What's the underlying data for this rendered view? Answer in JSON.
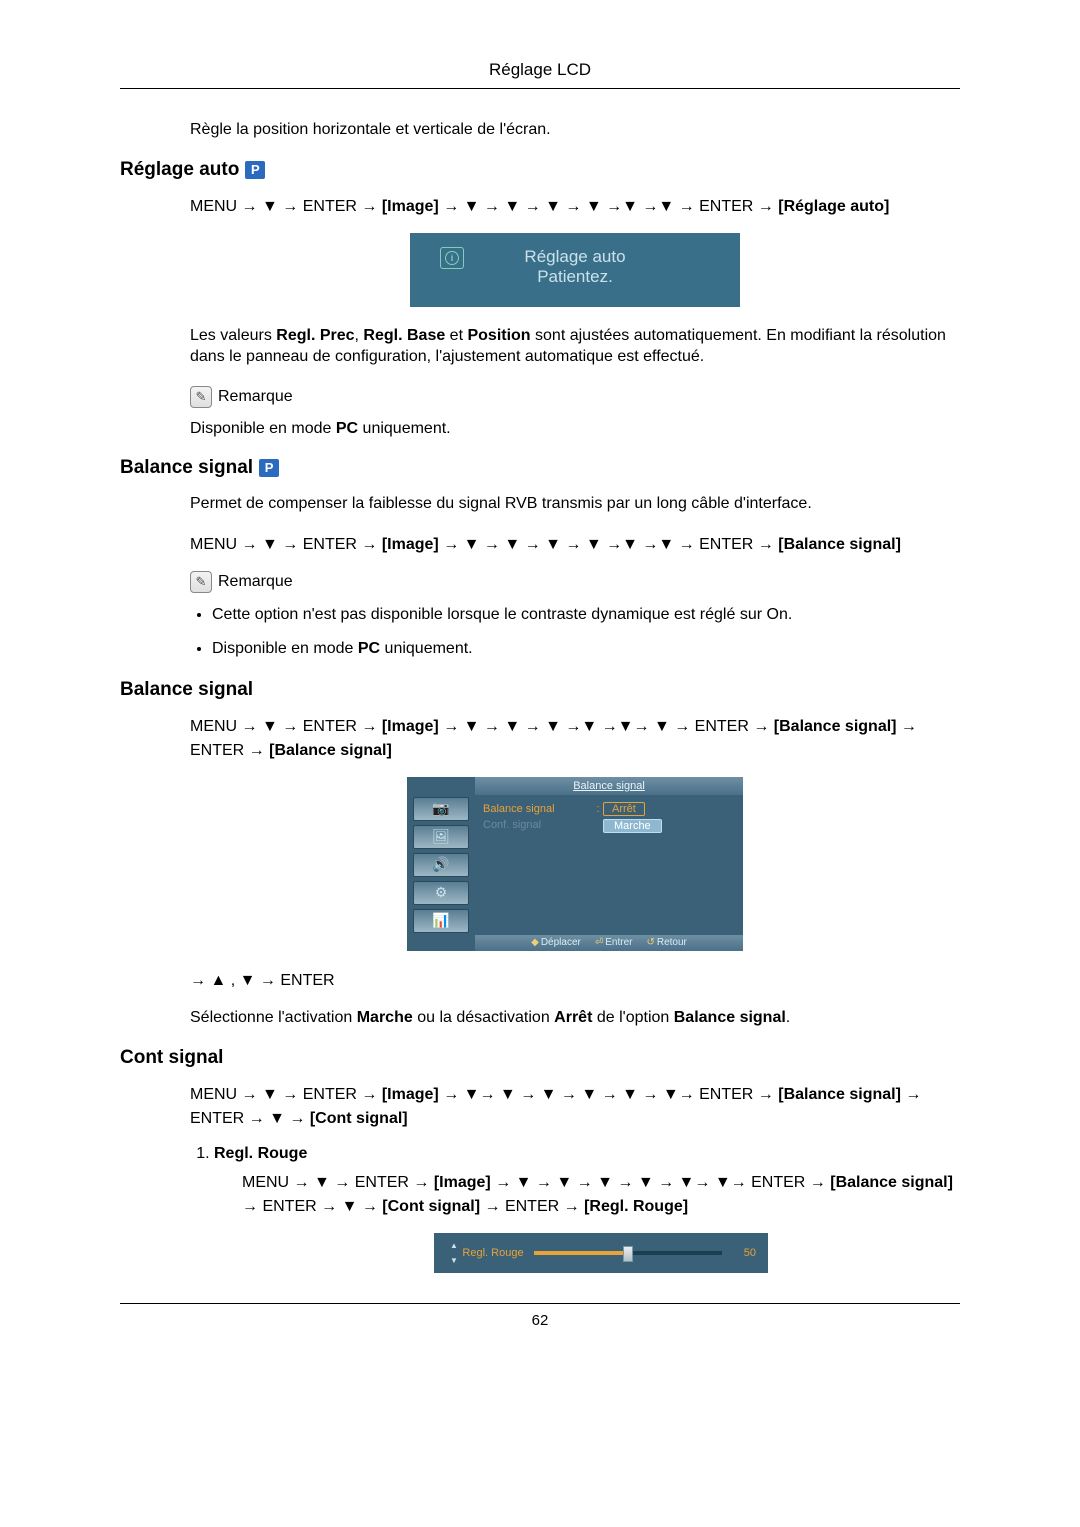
{
  "header": {
    "title": "Réglage LCD"
  },
  "page_number": "62",
  "intro_para": "Règle la position horizontale et verticale de l'écran.",
  "sec_auto": {
    "title": "Réglage auto",
    "badge": "P",
    "path_prefix": "MENU → ▼ → ENTER → ",
    "path_img": "[Image]",
    "path_mid": " → ▼ → ▼ → ▼ → ▼ →▼ →▼ → ENTER → ",
    "path_end": "[Réglage auto]",
    "box_line1": "Réglage auto",
    "box_line2": "Patientez.",
    "desc_a": "Les valeurs ",
    "desc_rp": "Regl. Prec",
    "desc_b": ", ",
    "desc_rb": "Regl. Base",
    "desc_c": " et ",
    "desc_pos": "Position",
    "desc_d": " sont ajustées automatiquement. En modifiant la résolution dans le panneau de configuration, l'ajustement automatique est effectué.",
    "remarque": "Remarque",
    "note_a": "Disponible en mode ",
    "note_pc": "PC",
    "note_b": " uniquement."
  },
  "sec_balsig1": {
    "title": "Balance signal",
    "badge": "P",
    "desc": "Permet de compenser la faiblesse du signal RVB transmis par un long câble d'interface.",
    "path_prefix": "MENU → ▼ → ENTER → ",
    "path_img": "[Image]",
    "path_mid": " → ▼ → ▼ → ▼ → ▼ →▼ →▼ → ENTER → ",
    "path_end": "[Balance signal]",
    "remarque": "Remarque",
    "bullet1": "Cette option n'est pas disponible lorsque le contraste dynamique est réglé sur On.",
    "bullet2_a": "Disponible en mode ",
    "bullet2_pc": "PC",
    "bullet2_b": " uniquement."
  },
  "sec_balsig2": {
    "title": "Balance signal",
    "path_prefix": "MENU → ▼ → ENTER → ",
    "path_img": "[Image]",
    "path_mid": " → ▼ → ▼ → ▼ →▼ →▼→ ▼ → ENTER → ",
    "path_bs": "[Balance signal]",
    "path_after": " → ENTER → ",
    "path_end": "[Balance signal]",
    "osd": {
      "tab_title": "Balance signal",
      "row1_label": "Balance signal",
      "row1_val": "Arrêt",
      "row2_label": "Conf. signal",
      "row2_sel": "Marche",
      "foot_move": "Déplacer",
      "foot_enter": "Entrer",
      "foot_return": "Retour"
    },
    "nav_after": "→ ▲ , ▼ → ENTER",
    "desc_a": "Sélectionne l'activation ",
    "desc_on": "Marche",
    "desc_b": " ou la désactivation ",
    "desc_off": "Arrêt",
    "desc_c": " de l'option ",
    "desc_bs": "Balance signal",
    "desc_d": "."
  },
  "sec_cont": {
    "title": "Cont signal",
    "path_prefix": "MENU → ▼ → ENTER → ",
    "path_img": "[Image]",
    "path_mid": " → ▼→ ▼ → ▼ → ▼ → ▼ → ▼→ ENTER → ",
    "path_bs": "[Balance signal]",
    "path_after": " → ENTER → ▼ → ",
    "path_end": "[Cont signal]",
    "item1_label": "Regl. Rouge",
    "item1_path_prefix": "MENU → ▼ → ENTER → ",
    "item1_path_img": "[Image]",
    "item1_path_mid": " → ▼ → ▼ → ▼ → ▼ → ▼→ ▼→ ENTER → ",
    "item1_path_bs": "[Balance signal]",
    "item1_path_a": " → ENTER → ▼ → ",
    "item1_path_cs": "[Cont signal]",
    "item1_path_b": " → ENTER → ",
    "item1_path_rr": "[Regl. Rouge]",
    "slider_label": "Regl. Rouge",
    "slider_value": "50"
  }
}
